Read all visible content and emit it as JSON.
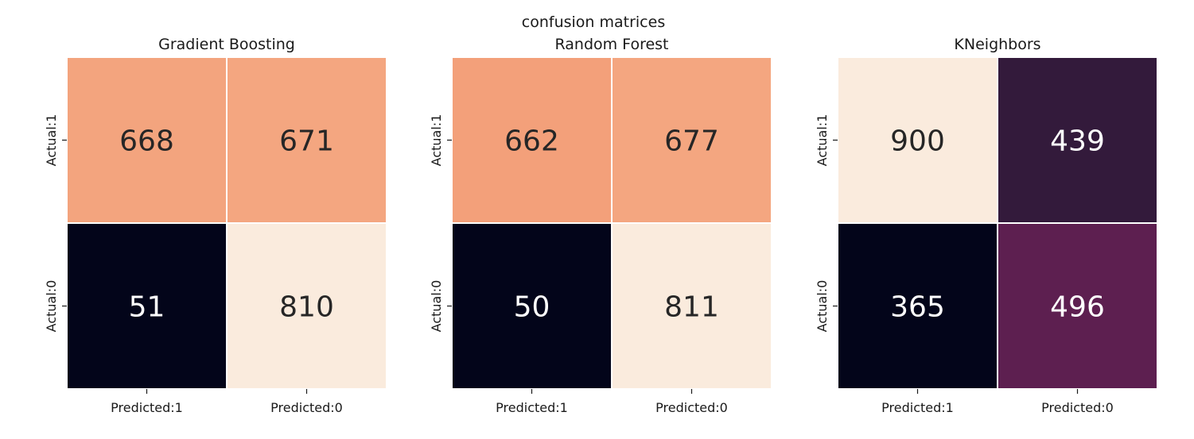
{
  "chart_data": {
    "type": "heatmap",
    "title": "confusion matrices",
    "panels": [
      {
        "title": "Gradient Boosting",
        "row_labels": [
          "Actual:1",
          "Actual:0"
        ],
        "col_labels": [
          "Predicted:1",
          "Predicted:0"
        ],
        "values": [
          [
            668,
            671
          ],
          [
            51,
            810
          ]
        ],
        "colors": [
          [
            "#f3a47e",
            "#f4a680"
          ],
          [
            "#03051a",
            "#faebdd"
          ]
        ],
        "text_colors": [
          [
            "#262626",
            "#262626"
          ],
          [
            "#ffffff",
            "#262626"
          ]
        ]
      },
      {
        "title": "Random Forest",
        "row_labels": [
          "Actual:1",
          "Actual:0"
        ],
        "col_labels": [
          "Predicted:1",
          "Predicted:0"
        ],
        "values": [
          [
            662,
            677
          ],
          [
            50,
            811
          ]
        ],
        "colors": [
          [
            "#f3a07a",
            "#f4a680"
          ],
          [
            "#03051a",
            "#faebdd"
          ]
        ],
        "text_colors": [
          [
            "#262626",
            "#262626"
          ],
          [
            "#ffffff",
            "#262626"
          ]
        ]
      },
      {
        "title": "KNeighbors",
        "row_labels": [
          "Actual:1",
          "Actual:0"
        ],
        "col_labels": [
          "Predicted:1",
          "Predicted:0"
        ],
        "values": [
          [
            900,
            439
          ],
          [
            365,
            496
          ]
        ],
        "colors": [
          [
            "#faebdd",
            "#331a3b"
          ],
          [
            "#03051a",
            "#5d1f50"
          ]
        ],
        "text_colors": [
          [
            "#262626",
            "#ffffff"
          ],
          [
            "#ffffff",
            "#ffffff"
          ]
        ]
      }
    ],
    "grid": false,
    "colorbar": false
  }
}
